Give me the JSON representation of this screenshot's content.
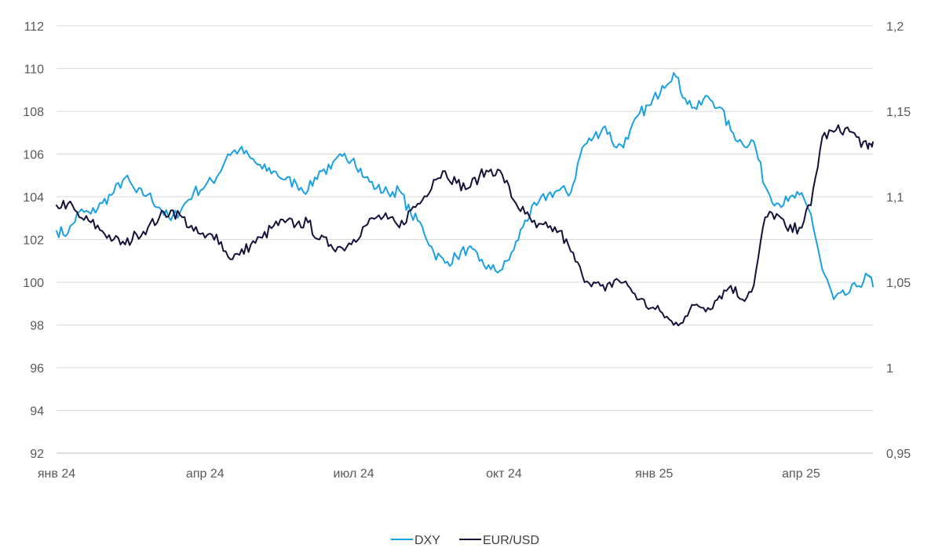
{
  "chart_data": {
    "type": "line",
    "title": "",
    "xlabel": "",
    "ylabel": "",
    "x_ticks": [
      "янв 24",
      "апр 24",
      "июл 24",
      "окт 24",
      "янв 25",
      "апр 25"
    ],
    "y_left": {
      "ticks": [
        "92",
        "94",
        "96",
        "98",
        "100",
        "102",
        "104",
        "106",
        "108",
        "110",
        "112"
      ],
      "min": 92,
      "max": 112
    },
    "y_right": {
      "ticks": [
        "0,95",
        "1",
        "1,05",
        "1,1",
        "1,15",
        "1,2"
      ],
      "min": 0.95,
      "max": 1.2
    },
    "grid": true,
    "legend_position": "bottom-center",
    "series": [
      {
        "name": "DXY",
        "axis": "left",
        "color": "#1ba1e2",
        "points": [
          [
            "2024-01-01",
            102.4
          ],
          [
            "2024-01-08",
            102.3
          ],
          [
            "2024-01-15",
            103.3
          ],
          [
            "2024-01-22",
            103.2
          ],
          [
            "2024-01-29",
            103.7
          ],
          [
            "2024-02-05",
            104.2
          ],
          [
            "2024-02-12",
            104.9
          ],
          [
            "2024-02-19",
            104.2
          ],
          [
            "2024-02-26",
            104.1
          ],
          [
            "2024-03-04",
            103.5
          ],
          [
            "2024-03-11",
            102.9
          ],
          [
            "2024-03-18",
            103.5
          ],
          [
            "2024-03-25",
            104.2
          ],
          [
            "2024-04-01",
            104.5
          ],
          [
            "2024-04-08",
            104.9
          ],
          [
            "2024-04-15",
            106.0
          ],
          [
            "2024-04-22",
            106.2
          ],
          [
            "2024-04-29",
            105.8
          ],
          [
            "2024-05-06",
            105.3
          ],
          [
            "2024-05-13",
            105.2
          ],
          [
            "2024-05-20",
            104.8
          ],
          [
            "2024-05-27",
            104.6
          ],
          [
            "2024-06-03",
            104.3
          ],
          [
            "2024-06-10",
            105.2
          ],
          [
            "2024-06-17",
            105.3
          ],
          [
            "2024-06-24",
            105.9
          ],
          [
            "2024-07-01",
            105.8
          ],
          [
            "2024-07-08",
            104.9
          ],
          [
            "2024-07-15",
            104.4
          ],
          [
            "2024-07-22",
            104.2
          ],
          [
            "2024-07-29",
            104.3
          ],
          [
            "2024-08-05",
            103.2
          ],
          [
            "2024-08-12",
            102.6
          ],
          [
            "2024-08-19",
            101.4
          ],
          [
            "2024-08-26",
            100.9
          ],
          [
            "2024-09-02",
            101.2
          ],
          [
            "2024-09-09",
            101.6
          ],
          [
            "2024-09-16",
            101.0
          ],
          [
            "2024-09-23",
            100.6
          ],
          [
            "2024-09-30",
            100.6
          ],
          [
            "2024-10-07",
            101.5
          ],
          [
            "2024-10-14",
            102.9
          ],
          [
            "2024-10-21",
            103.6
          ],
          [
            "2024-10-28",
            104.1
          ],
          [
            "2024-11-04",
            104.3
          ],
          [
            "2024-11-11",
            104.2
          ],
          [
            "2024-11-18",
            106.3
          ],
          [
            "2024-11-25",
            106.8
          ],
          [
            "2024-12-02",
            107.3
          ],
          [
            "2024-12-09",
            106.3
          ],
          [
            "2024-12-16",
            106.7
          ],
          [
            "2024-12-23",
            107.9
          ],
          [
            "2024-12-30",
            108.3
          ],
          [
            "2025-01-06",
            109.2
          ],
          [
            "2025-01-13",
            109.8
          ],
          [
            "2025-01-20",
            108.6
          ],
          [
            "2025-01-27",
            108.1
          ],
          [
            "2025-02-03",
            108.7
          ],
          [
            "2025-02-10",
            108.2
          ],
          [
            "2025-02-17",
            107.1
          ],
          [
            "2025-02-24",
            106.5
          ],
          [
            "2025-03-03",
            106.6
          ],
          [
            "2025-03-10",
            104.5
          ],
          [
            "2025-03-17",
            103.7
          ],
          [
            "2025-03-24",
            103.8
          ],
          [
            "2025-03-31",
            104.1
          ],
          [
            "2025-04-07",
            103.2
          ],
          [
            "2025-04-14",
            100.6
          ],
          [
            "2025-04-21",
            99.2
          ],
          [
            "2025-04-28",
            99.4
          ],
          [
            "2025-05-05",
            99.8
          ],
          [
            "2025-05-12",
            100.3
          ],
          [
            "2025-05-15",
            99.8
          ]
        ]
      },
      {
        "name": "EUR/USD",
        "axis": "right",
        "color": "#14123a",
        "points": [
          [
            "2024-01-01",
            1.095
          ],
          [
            "2024-01-08",
            1.096
          ],
          [
            "2024-01-15",
            1.088
          ],
          [
            "2024-01-22",
            1.085
          ],
          [
            "2024-01-29",
            1.08
          ],
          [
            "2024-02-05",
            1.075
          ],
          [
            "2024-02-12",
            1.072
          ],
          [
            "2024-02-19",
            1.078
          ],
          [
            "2024-02-26",
            1.082
          ],
          [
            "2024-03-04",
            1.088
          ],
          [
            "2024-03-11",
            1.092
          ],
          [
            "2024-03-18",
            1.088
          ],
          [
            "2024-03-25",
            1.08
          ],
          [
            "2024-04-01",
            1.076
          ],
          [
            "2024-04-08",
            1.078
          ],
          [
            "2024-04-15",
            1.065
          ],
          [
            "2024-04-22",
            1.066
          ],
          [
            "2024-04-29",
            1.072
          ],
          [
            "2024-05-06",
            1.076
          ],
          [
            "2024-05-13",
            1.083
          ],
          [
            "2024-05-20",
            1.085
          ],
          [
            "2024-05-27",
            1.084
          ],
          [
            "2024-06-03",
            1.085
          ],
          [
            "2024-06-10",
            1.075
          ],
          [
            "2024-06-17",
            1.072
          ],
          [
            "2024-06-24",
            1.07
          ],
          [
            "2024-07-01",
            1.075
          ],
          [
            "2024-07-08",
            1.083
          ],
          [
            "2024-07-15",
            1.088
          ],
          [
            "2024-07-22",
            1.087
          ],
          [
            "2024-07-29",
            1.082
          ],
          [
            "2024-08-05",
            1.092
          ],
          [
            "2024-08-12",
            1.098
          ],
          [
            "2024-08-19",
            1.11
          ],
          [
            "2024-08-26",
            1.115
          ],
          [
            "2024-09-02",
            1.108
          ],
          [
            "2024-09-09",
            1.105
          ],
          [
            "2024-09-16",
            1.112
          ],
          [
            "2024-09-23",
            1.116
          ],
          [
            "2024-09-30",
            1.113
          ],
          [
            "2024-10-07",
            1.098
          ],
          [
            "2024-10-14",
            1.09
          ],
          [
            "2024-10-21",
            1.082
          ],
          [
            "2024-10-28",
            1.082
          ],
          [
            "2024-11-04",
            1.08
          ],
          [
            "2024-11-11",
            1.068
          ],
          [
            "2024-11-18",
            1.054
          ],
          [
            "2024-11-25",
            1.05
          ],
          [
            "2024-12-02",
            1.045
          ],
          [
            "2024-12-09",
            1.052
          ],
          [
            "2024-12-16",
            1.048
          ],
          [
            "2024-12-23",
            1.04
          ],
          [
            "2024-12-30",
            1.035
          ],
          [
            "2025-01-06",
            1.032
          ],
          [
            "2025-01-13",
            1.025
          ],
          [
            "2025-01-20",
            1.03
          ],
          [
            "2025-01-27",
            1.037
          ],
          [
            "2025-02-03",
            1.035
          ],
          [
            "2025-02-10",
            1.042
          ],
          [
            "2025-02-17",
            1.048
          ],
          [
            "2025-02-24",
            1.04
          ],
          [
            "2025-03-03",
            1.048
          ],
          [
            "2025-03-10",
            1.088
          ],
          [
            "2025-03-17",
            1.09
          ],
          [
            "2025-03-24",
            1.08
          ],
          [
            "2025-03-31",
            1.082
          ],
          [
            "2025-04-07",
            1.095
          ],
          [
            "2025-04-14",
            1.135
          ],
          [
            "2025-04-21",
            1.138
          ],
          [
            "2025-04-28",
            1.14
          ],
          [
            "2025-05-05",
            1.135
          ],
          [
            "2025-05-12",
            1.128
          ],
          [
            "2025-05-15",
            1.132
          ]
        ]
      }
    ]
  }
}
